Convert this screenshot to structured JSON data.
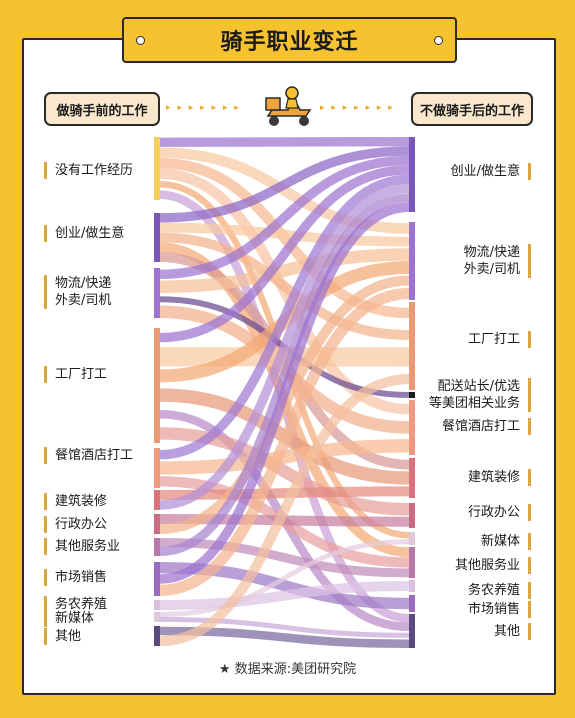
{
  "title": "骑手职业变迁",
  "header_left": "做骑手前的工作",
  "header_right": "不做骑手后的工作",
  "arrow_dots": "▸ ▸ ▸ ▸ ▸ ▸ ▸",
  "source": "★ 数据来源:美团研究院",
  "colors": {
    "background": "#f6c230",
    "purple": "#9c73d0",
    "orange": "#f3a974",
    "peach": "#f8c9a2",
    "dark": "#4a3f7a"
  },
  "left_labels": [
    {
      "id": "none",
      "lines": [
        "没有工作经历"
      ]
    },
    {
      "id": "startup",
      "lines": [
        "创业/做生意"
      ]
    },
    {
      "id": "logistics",
      "lines": [
        "物流/快递",
        "外卖/司机"
      ]
    },
    {
      "id": "factory",
      "lines": [
        "工厂打工"
      ]
    },
    {
      "id": "restaurant",
      "lines": [
        "餐馆酒店打工"
      ]
    },
    {
      "id": "construction",
      "lines": [
        "建筑装修"
      ]
    },
    {
      "id": "admin",
      "lines": [
        "行政办公"
      ]
    },
    {
      "id": "services",
      "lines": [
        "其他服务业"
      ]
    },
    {
      "id": "sales",
      "lines": [
        "市场销售"
      ]
    },
    {
      "id": "agri",
      "lines": [
        "务农养殖"
      ]
    },
    {
      "id": "newmedia",
      "lines": [
        "新媒体"
      ]
    },
    {
      "id": "other",
      "lines": [
        "其他"
      ]
    }
  ],
  "right_labels": [
    {
      "id": "startup",
      "lines": [
        "创业/做生意"
      ]
    },
    {
      "id": "logistics",
      "lines": [
        "物流/快递",
        "外卖/司机"
      ]
    },
    {
      "id": "factory",
      "lines": [
        "工厂打工"
      ]
    },
    {
      "id": "station",
      "lines": [
        "配送站长/优选",
        "等美团相关业务"
      ]
    },
    {
      "id": "restaurant",
      "lines": [
        "餐馆酒店打工"
      ]
    },
    {
      "id": "construction",
      "lines": [
        "建筑装修"
      ]
    },
    {
      "id": "admin",
      "lines": [
        "行政办公"
      ]
    },
    {
      "id": "newmedia",
      "lines": [
        "新媒体"
      ]
    },
    {
      "id": "services",
      "lines": [
        "其他服务业"
      ]
    },
    {
      "id": "agri",
      "lines": [
        "务农养殖"
      ]
    },
    {
      "id": "sales",
      "lines": [
        "市场销售"
      ]
    },
    {
      "id": "other",
      "lines": [
        "其他"
      ]
    }
  ]
}
